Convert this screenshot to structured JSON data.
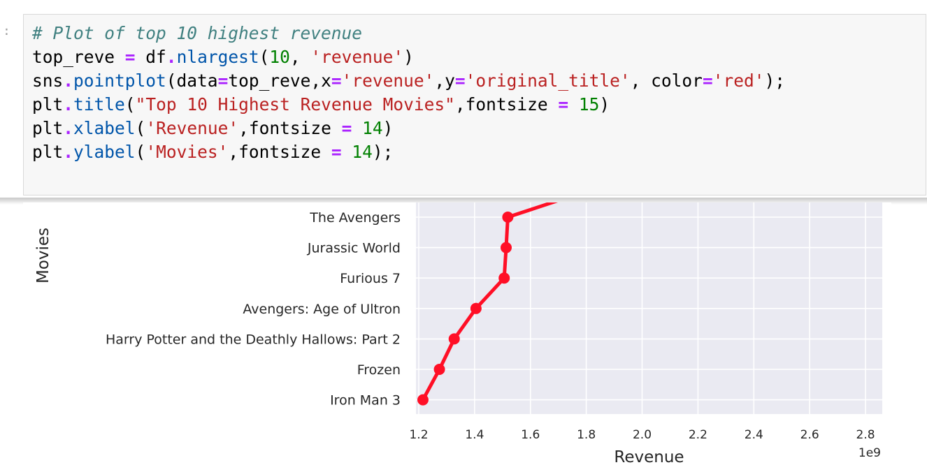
{
  "cell": {
    "prompt": ":",
    "code_lines": [
      [
        {
          "t": "cm",
          "v": "# Plot of top 10 highest revenue"
        }
      ],
      [
        {
          "t": "",
          "v": "top_reve "
        },
        {
          "t": "op",
          "v": "="
        },
        {
          "t": "",
          "v": " df"
        },
        {
          "t": "op",
          "v": "."
        },
        {
          "t": "fn",
          "v": "nlargest"
        },
        {
          "t": "",
          "v": "("
        },
        {
          "t": "nu",
          "v": "10"
        },
        {
          "t": "",
          "v": ", "
        },
        {
          "t": "st",
          "v": "'revenue'"
        },
        {
          "t": "",
          "v": ")"
        }
      ],
      [
        {
          "t": "",
          "v": "sns"
        },
        {
          "t": "op",
          "v": "."
        },
        {
          "t": "fn",
          "v": "pointplot"
        },
        {
          "t": "",
          "v": "(data"
        },
        {
          "t": "op",
          "v": "="
        },
        {
          "t": "",
          "v": "top_reve,x"
        },
        {
          "t": "op",
          "v": "="
        },
        {
          "t": "st",
          "v": "'revenue'"
        },
        {
          "t": "",
          "v": ",y"
        },
        {
          "t": "op",
          "v": "="
        },
        {
          "t": "st",
          "v": "'original_title'"
        },
        {
          "t": "",
          "v": ", color"
        },
        {
          "t": "op",
          "v": "="
        },
        {
          "t": "st",
          "v": "'red'"
        },
        {
          "t": "",
          "v": ");"
        }
      ],
      [
        {
          "t": "",
          "v": "plt"
        },
        {
          "t": "op",
          "v": "."
        },
        {
          "t": "fn",
          "v": "title"
        },
        {
          "t": "",
          "v": "("
        },
        {
          "t": "st",
          "v": "\"Top 10 Highest Revenue Movies\""
        },
        {
          "t": "",
          "v": ",fontsize "
        },
        {
          "t": "op",
          "v": "="
        },
        {
          "t": "",
          "v": " "
        },
        {
          "t": "nu",
          "v": "15"
        },
        {
          "t": "",
          "v": ")"
        }
      ],
      [
        {
          "t": "",
          "v": "plt"
        },
        {
          "t": "op",
          "v": "."
        },
        {
          "t": "fn",
          "v": "xlabel"
        },
        {
          "t": "",
          "v": "("
        },
        {
          "t": "st",
          "v": "'Revenue'"
        },
        {
          "t": "",
          "v": ",fontsize "
        },
        {
          "t": "op",
          "v": "="
        },
        {
          "t": "",
          "v": " "
        },
        {
          "t": "nu",
          "v": "14"
        },
        {
          "t": "",
          "v": ")"
        }
      ],
      [
        {
          "t": "",
          "v": "plt"
        },
        {
          "t": "op",
          "v": "."
        },
        {
          "t": "fn",
          "v": "ylabel"
        },
        {
          "t": "",
          "v": "("
        },
        {
          "t": "st",
          "v": "'Movies'"
        },
        {
          "t": "",
          "v": ",fontsize "
        },
        {
          "t": "op",
          "v": "="
        },
        {
          "t": "",
          "v": " "
        },
        {
          "t": "nu",
          "v": "14"
        },
        {
          "t": "",
          "v": ");"
        }
      ]
    ]
  },
  "chart_data": {
    "type": "line",
    "xlabel": "Revenue",
    "ylabel": "Movies",
    "x_offset_label": "1e9",
    "xlim": [
      1.19,
      2.86
    ],
    "x_ticks": [
      1.2,
      1.4,
      1.6,
      1.8,
      2.0,
      2.2,
      2.4,
      2.6,
      2.8
    ],
    "x_tick_labels": [
      "1.2",
      "1.4",
      "1.6",
      "1.8",
      "2.0",
      "2.2",
      "2.4",
      "2.6",
      "2.8"
    ],
    "grid": true,
    "color": "#ff0f26",
    "background": "#eaeaf2",
    "categories": [
      "The Avengers",
      "Jurassic World",
      "Furious 7",
      "Avengers: Age of Ultron",
      "Harry Potter and the Deathly Hallows: Part 2",
      "Frozen",
      "Iron Man 3"
    ],
    "values": [
      1.519,
      1.513,
      1.506,
      1.405,
      1.327,
      1.274,
      1.215
    ],
    "offscreen_previous_value": 1.85
  }
}
